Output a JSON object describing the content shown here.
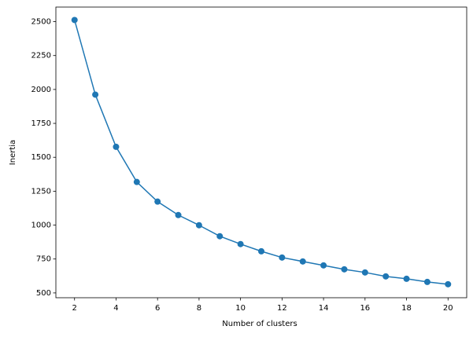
{
  "chart_data": {
    "type": "line",
    "x": [
      2,
      3,
      4,
      5,
      6,
      7,
      8,
      9,
      10,
      11,
      12,
      13,
      14,
      15,
      16,
      17,
      18,
      19,
      20
    ],
    "series": [
      {
        "color": "#1f77b4",
        "marker": "o",
        "values": [
          2512,
          1962,
          1577,
          1318,
          1173,
          1074,
          999,
          918,
          860,
          807,
          761,
          732,
          703,
          674,
          651,
          622,
          604,
          581,
          564
        ]
      }
    ],
    "xlabel": "Number of clusters",
    "ylabel": "Inertia",
    "xlim": [
      1.1,
      20.9
    ],
    "ylim": [
      464.6,
      2607.4
    ],
    "xticks": [
      2,
      4,
      6,
      8,
      10,
      12,
      14,
      16,
      18,
      20
    ],
    "yticks": [
      500,
      750,
      1000,
      1250,
      1500,
      1750,
      2000,
      2250,
      2500
    ],
    "grid": false
  }
}
